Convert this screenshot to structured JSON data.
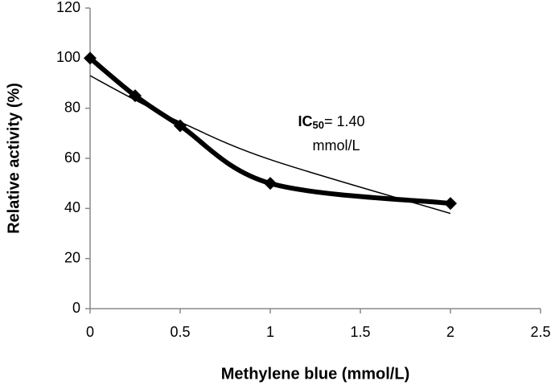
{
  "chart_data": {
    "type": "line",
    "x_label": "Methylene blue (mmol/L)",
    "y_label": "Relative activity (%)",
    "x": [
      0,
      0.25,
      0.5,
      1,
      2
    ],
    "series": [
      {
        "color": "#000000",
        "markers": true,
        "values": [
          100,
          85,
          73,
          50,
          42
        ]
      },
      {
        "color": "#000000",
        "markers": false,
        "values": [
          93,
          83.3,
          74.5,
          59.5,
          38
        ]
      }
    ],
    "xlim": [
      0,
      2.5
    ],
    "xticks": [
      0,
      0.5,
      1,
      1.5,
      2,
      2.5
    ],
    "ylim": [
      0,
      120
    ],
    "yticks": [
      0,
      20,
      40,
      60,
      80,
      100,
      120
    ],
    "grid": false,
    "annotation": {
      "prefix": "IC",
      "subscript": "50",
      "text": "= 1.40",
      "line2": "mmol/L"
    }
  }
}
